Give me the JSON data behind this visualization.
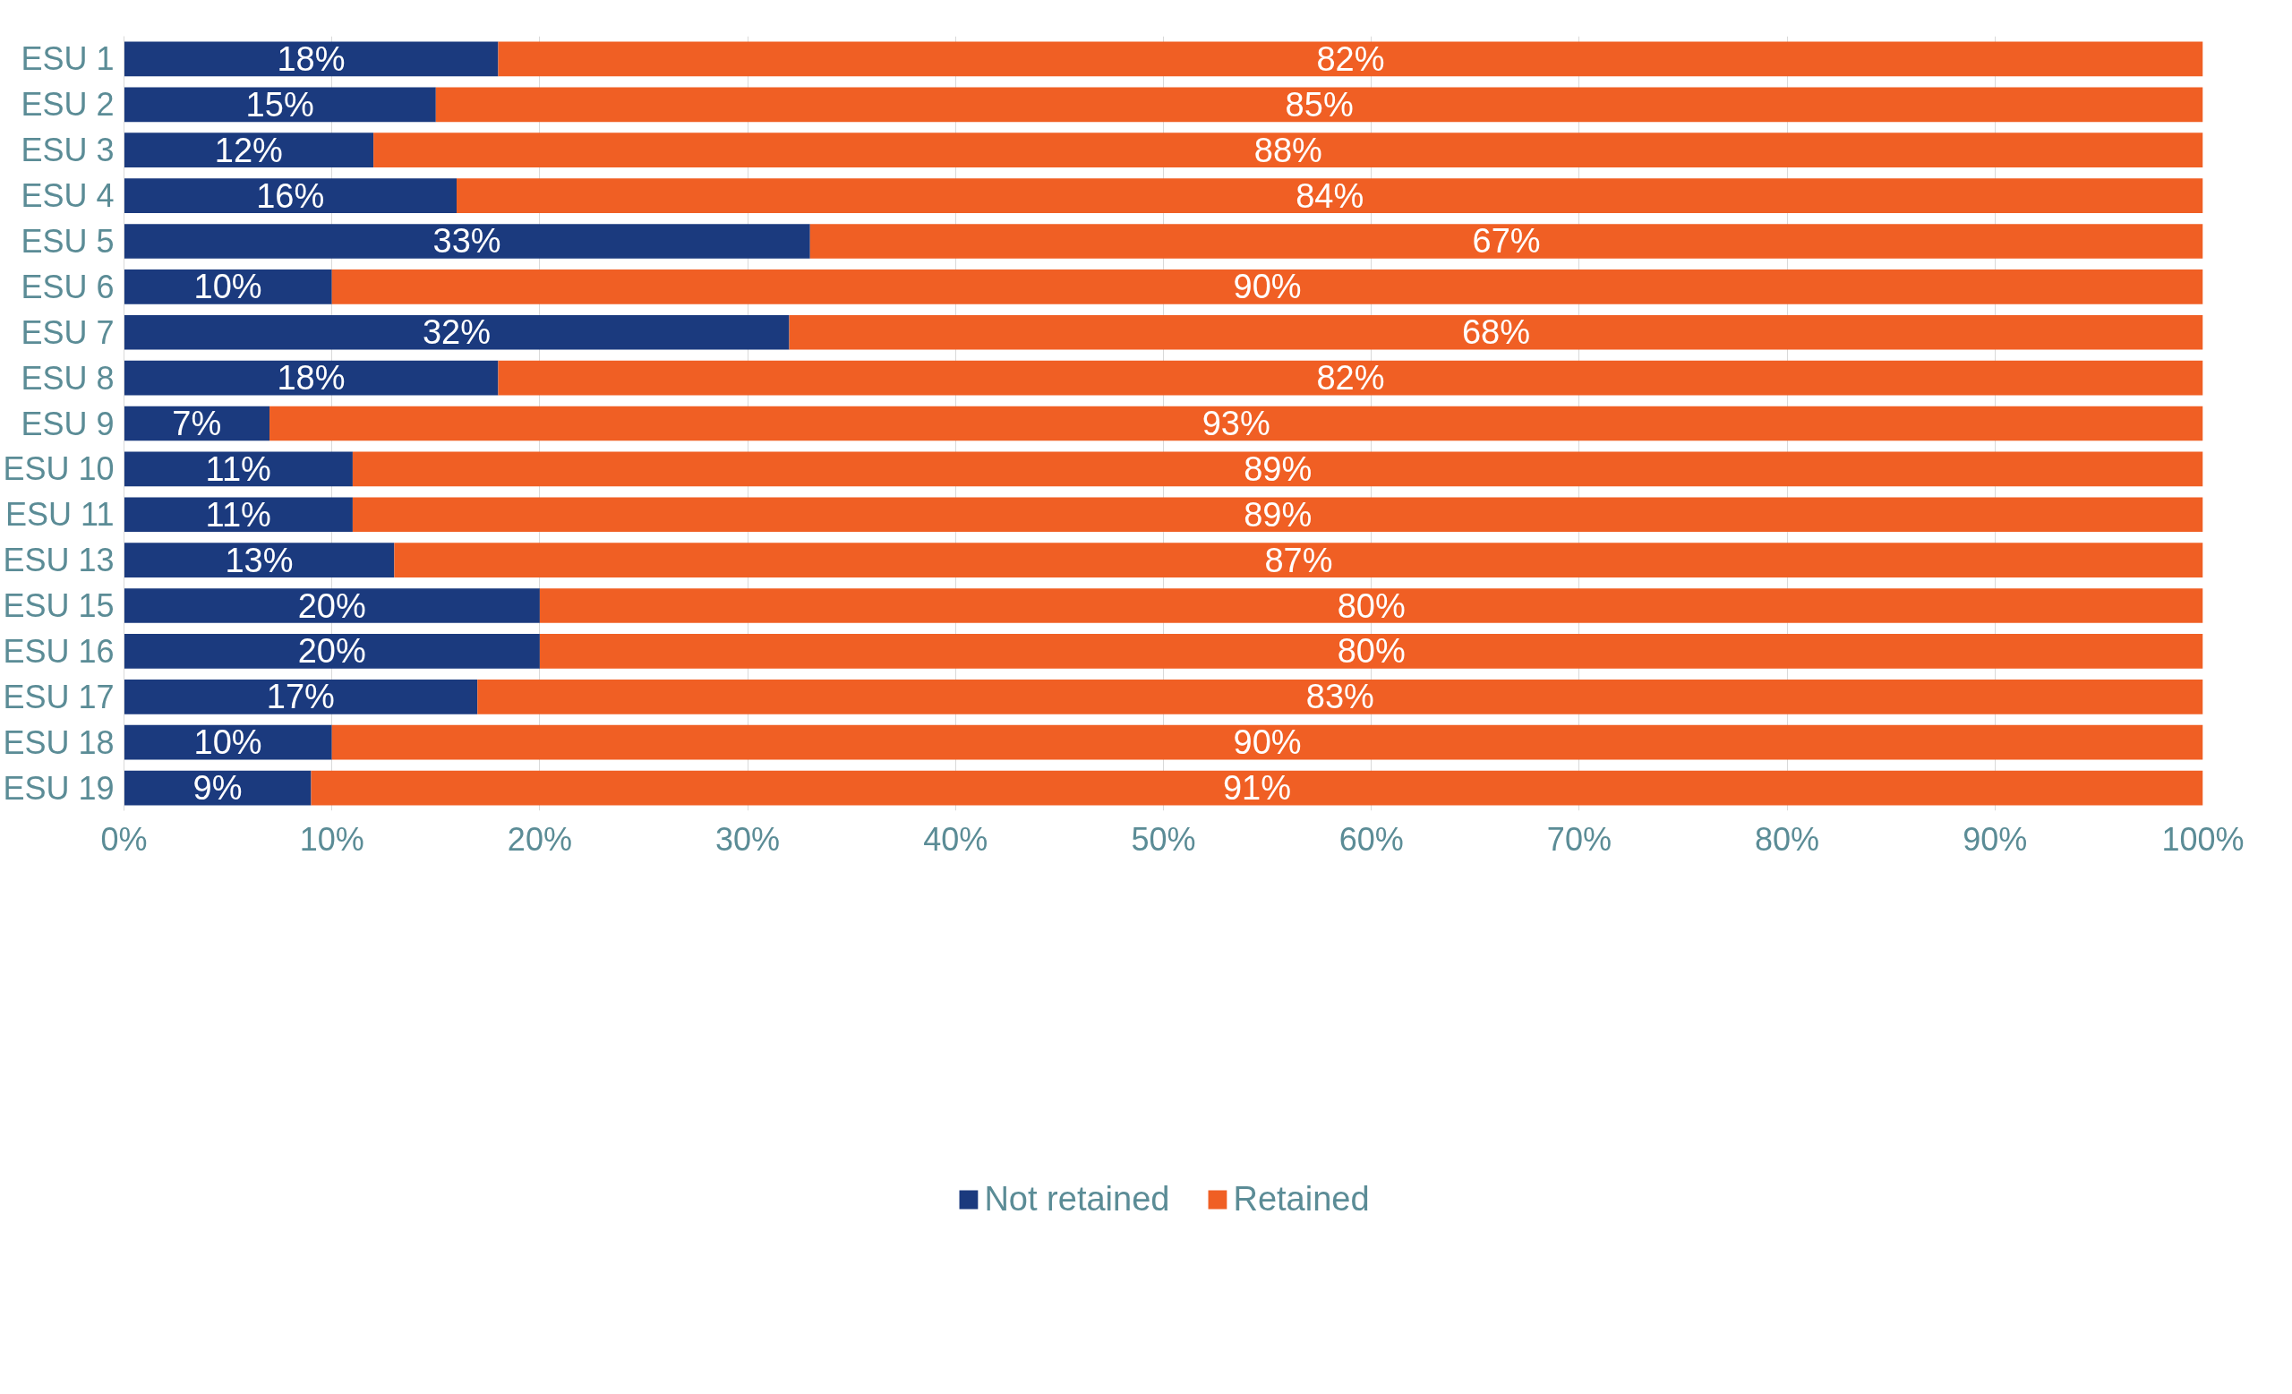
{
  "chart_data": {
    "type": "bar",
    "orientation": "horizontal",
    "stacked": true,
    "grid": "x",
    "legend": "bottom",
    "categories": [
      "ESU 1",
      "ESU 2",
      "ESU 3",
      "ESU 4",
      "ESU 5",
      "ESU 6",
      "ESU 7",
      "ESU 8",
      "ESU 9",
      "ESU 10",
      "ESU 11",
      "ESU 13",
      "ESU 15",
      "ESU 16",
      "ESU 17",
      "ESU 18",
      "ESU 19"
    ],
    "series": [
      {
        "name": "Not retained",
        "color": "#1b3a7e",
        "values": [
          18,
          15,
          12,
          16,
          33,
          10,
          32,
          18,
          7,
          11,
          11,
          13,
          20,
          20,
          17,
          10,
          9
        ],
        "value_labels": [
          "18%",
          "15%",
          "12%",
          "16%",
          "33%",
          "10%",
          "32%",
          "18%",
          "7%",
          "11%",
          "11%",
          "13%",
          "20%",
          "20%",
          "17%",
          "10%",
          "9%"
        ]
      },
      {
        "name": "Retained",
        "color": "#f05f24",
        "values": [
          82,
          85,
          88,
          84,
          67,
          90,
          68,
          82,
          93,
          89,
          89,
          87,
          80,
          80,
          83,
          90,
          91
        ],
        "value_labels": [
          "82%",
          "85%",
          "88%",
          "84%",
          "67%",
          "90%",
          "68%",
          "82%",
          "93%",
          "89%",
          "89%",
          "87%",
          "80%",
          "80%",
          "83%",
          "90%",
          "91%"
        ]
      }
    ],
    "xlim": [
      0,
      100
    ],
    "xticks": [
      {
        "value": 0,
        "label": "0%"
      },
      {
        "value": 10,
        "label": "10%"
      },
      {
        "value": 20,
        "label": "20%"
      },
      {
        "value": 30,
        "label": "30%"
      },
      {
        "value": 40,
        "label": "40%"
      },
      {
        "value": 50,
        "label": "50%"
      },
      {
        "value": 60,
        "label": "60%"
      },
      {
        "value": 70,
        "label": "70%"
      },
      {
        "value": 80,
        "label": "80%"
      },
      {
        "value": 90,
        "label": "90%"
      },
      {
        "value": 100,
        "label": "100%"
      }
    ]
  }
}
